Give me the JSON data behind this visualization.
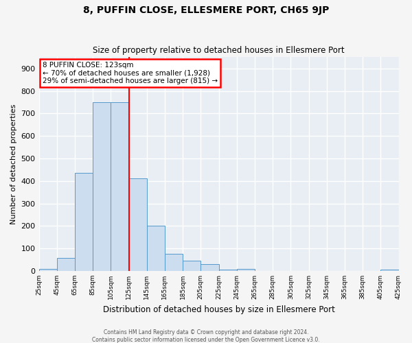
{
  "title": "8, PUFFIN CLOSE, ELLESMERE PORT, CH65 9JP",
  "subtitle": "Size of property relative to detached houses in Ellesmere Port",
  "xlabel": "Distribution of detached houses by size in Ellesmere Port",
  "ylabel": "Number of detached properties",
  "bin_edges": [
    25,
    45,
    65,
    85,
    105,
    125,
    145,
    165,
    185,
    205,
    225,
    245,
    265,
    285,
    305,
    325,
    345,
    365,
    385,
    405,
    425
  ],
  "bar_heights": [
    10,
    58,
    435,
    750,
    750,
    410,
    200,
    75,
    45,
    30,
    5,
    10,
    0,
    0,
    0,
    0,
    0,
    0,
    0,
    5
  ],
  "bar_face_color": "#ccddf0",
  "bar_edge_color": "#5599cc",
  "vline_x": 125,
  "vline_color": "red",
  "annotation_title": "8 PUFFIN CLOSE: 123sqm",
  "annotation_line1": "← 70% of detached houses are smaller (1,928)",
  "annotation_line2": "29% of semi-detached houses are larger (815) →",
  "annotation_box_color": "red",
  "ylim": [
    0,
    950
  ],
  "yticks": [
    0,
    100,
    200,
    300,
    400,
    500,
    600,
    700,
    800,
    900
  ],
  "xtick_labels": [
    "25sqm",
    "45sqm",
    "65sqm",
    "85sqm",
    "105sqm",
    "125sqm",
    "145sqm",
    "165sqm",
    "185sqm",
    "205sqm",
    "225sqm",
    "245sqm",
    "265sqm",
    "285sqm",
    "305sqm",
    "325sqm",
    "345sqm",
    "365sqm",
    "385sqm",
    "405sqm",
    "425sqm"
  ],
  "plot_bg_color": "#e8eef4",
  "fig_bg_color": "#f5f5f5",
  "grid_color": "white",
  "footer_line1": "Contains HM Land Registry data © Crown copyright and database right 2024.",
  "footer_line2": "Contains public sector information licensed under the Open Government Licence v3.0."
}
